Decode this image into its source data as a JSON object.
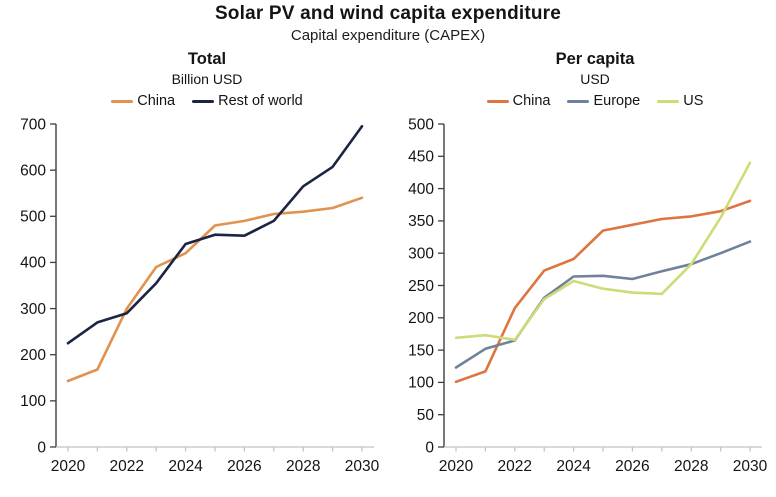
{
  "header": {
    "title": "Solar PV and wind capita expenditure",
    "subtitle": "Capital expenditure (CAPEX)"
  },
  "colors": {
    "axis_dark": "#3f3f3f",
    "axis_light": "#c2c2c2",
    "text": "#141414"
  },
  "chart_data": [
    {
      "type": "line",
      "title": "Total",
      "subtitle": "Billion USD",
      "xlabel": "",
      "ylabel": "Billion USD",
      "x": [
        2020,
        2021,
        2022,
        2023,
        2024,
        2025,
        2026,
        2027,
        2028,
        2029,
        2030
      ],
      "x_tick_labels": [
        2020,
        2022,
        2024,
        2026,
        2028,
        2030
      ],
      "ylim": [
        0,
        700
      ],
      "ytick_step": 100,
      "grid": false,
      "legend_position": "top",
      "series": [
        {
          "name": "China",
          "color": "#E0924F",
          "values": [
            143,
            168,
            300,
            390,
            420,
            480,
            490,
            505,
            510,
            518,
            540
          ]
        },
        {
          "name": "Rest of world",
          "color": "#1B2543",
          "values": [
            225,
            270,
            290,
            355,
            440,
            460,
            458,
            490,
            565,
            607,
            695
          ]
        }
      ]
    },
    {
      "type": "line",
      "title": "Per capita",
      "subtitle": "USD",
      "xlabel": "",
      "ylabel": "USD",
      "x": [
        2020,
        2021,
        2022,
        2023,
        2024,
        2025,
        2026,
        2027,
        2028,
        2029,
        2030
      ],
      "x_tick_labels": [
        2020,
        2022,
        2024,
        2026,
        2028,
        2030
      ],
      "ylim": [
        0,
        500
      ],
      "ytick_step": 50,
      "grid": false,
      "legend_position": "top",
      "series": [
        {
          "name": "China",
          "color": "#DC753F",
          "values": [
            101,
            117,
            215,
            273,
            291,
            335,
            344,
            353,
            357,
            365,
            381
          ]
        },
        {
          "name": "Europe",
          "color": "#70829A",
          "values": [
            123,
            152,
            165,
            231,
            264,
            265,
            260,
            272,
            283,
            300,
            318
          ]
        },
        {
          "name": "US",
          "color": "#CDDC78",
          "values": [
            169,
            173,
            166,
            229,
            257,
            245,
            239,
            237,
            283,
            355,
            440
          ]
        }
      ]
    }
  ]
}
